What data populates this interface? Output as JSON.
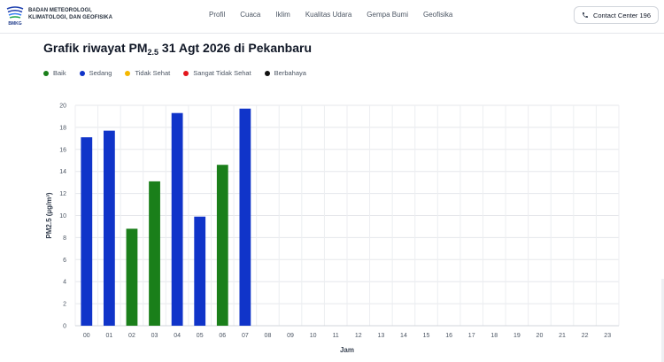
{
  "header": {
    "brand_lines": [
      "BADAN METEOROLOGI,",
      "KLIMATOLOGI, DAN GEOFISIKA"
    ],
    "logo_text": "BMKG",
    "nav": [
      "Profil",
      "Cuaca",
      "Iklim",
      "Kualitas Udara",
      "Gempa Bumi",
      "Geofisika"
    ],
    "contact_label": "Contact Center 196"
  },
  "title": {
    "prefix": "Grafik riwayat PM",
    "subscript": "2.5",
    "suffix": " 31 Agt 2026 di Pekanbaru"
  },
  "legend": [
    {
      "label": "Baik",
      "color": "#1a7f1a"
    },
    {
      "label": "Sedang",
      "color": "#1034c9"
    },
    {
      "label": "Tidak Sehat",
      "color": "#f5b800"
    },
    {
      "label": "Sangat Tidak Sehat",
      "color": "#e3161c"
    },
    {
      "label": "Berbahaya",
      "color": "#111111"
    }
  ],
  "chart_data": {
    "type": "bar",
    "xlabel": "Jam",
    "ylabel": "PM2.5 (µg/m³)",
    "ylim": [
      0,
      20
    ],
    "yticks": [
      0,
      2,
      4,
      6,
      8,
      10,
      12,
      14,
      16,
      18,
      20
    ],
    "categories": [
      "00",
      "01",
      "02",
      "03",
      "04",
      "05",
      "06",
      "07",
      "08",
      "09",
      "10",
      "11",
      "12",
      "13",
      "14",
      "15",
      "16",
      "17",
      "18",
      "19",
      "20",
      "21",
      "22",
      "23"
    ],
    "values": [
      17.1,
      17.7,
      8.8,
      13.1,
      19.3,
      9.9,
      14.6,
      19.7,
      null,
      null,
      null,
      null,
      null,
      null,
      null,
      null,
      null,
      null,
      null,
      null,
      null,
      null,
      null,
      null
    ],
    "colors": [
      "#1034c9",
      "#1034c9",
      "#1a7f1a",
      "#1a7f1a",
      "#1034c9",
      "#1034c9",
      "#1a7f1a",
      "#1034c9"
    ],
    "grid": true
  }
}
